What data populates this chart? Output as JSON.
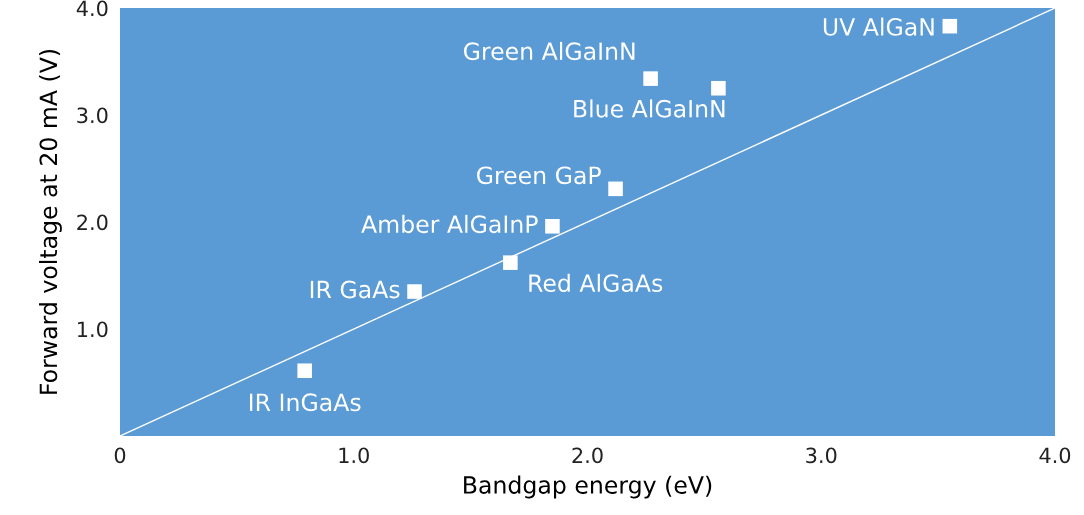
{
  "chart_data": {
    "type": "scatter",
    "xlabel": "Bandgap energy (eV)",
    "ylabel": "Forward voltage at 20 mA (V)",
    "xlim": [
      0,
      4
    ],
    "ylim": [
      0,
      4
    ],
    "xticks": [
      0,
      {
        "value": 1,
        "label": "1.0"
      },
      {
        "value": 2,
        "label": "2.0"
      },
      {
        "value": 3,
        "label": "3.0"
      },
      {
        "value": 4,
        "label": "4.0"
      }
    ],
    "yticks": [
      {
        "value": 1,
        "label": "1.0"
      },
      {
        "value": 2,
        "label": "2.0"
      },
      {
        "value": 3,
        "label": "3.0"
      },
      {
        "value": 4,
        "label": "4.0"
      }
    ],
    "grid": false,
    "series": [
      {
        "marker": "square",
        "color": "#ffffff",
        "x": [
          0.79,
          1.26,
          1.67,
          1.85,
          2.12,
          2.27,
          2.56,
          3.55
        ],
        "values": [
          0.61,
          1.35,
          1.62,
          1.96,
          2.31,
          3.34,
          3.25,
          3.83
        ]
      },
      {
        "type": "line",
        "color": "#ffffff",
        "x": [
          0,
          4
        ],
        "values": [
          0,
          4
        ]
      }
    ],
    "annotations": [
      {
        "text": "IR InGaAs",
        "x": 0.79,
        "y": 0.61
      },
      {
        "text": "IR GaAs",
        "x": 1.26,
        "y": 1.35
      },
      {
        "text": "Red AlGaAs",
        "x": 1.67,
        "y": 1.62
      },
      {
        "text": "Amber AlGaInP",
        "x": 1.85,
        "y": 1.96
      },
      {
        "text": "Green GaP",
        "x": 2.12,
        "y": 2.31
      },
      {
        "text": "Green AlGaInN",
        "x": 2.27,
        "y": 3.34
      },
      {
        "text": "Blue AlGaInN",
        "x": 2.56,
        "y": 3.25
      },
      {
        "text": "UV AlGaN",
        "x": 3.55,
        "y": 3.83
      }
    ]
  }
}
